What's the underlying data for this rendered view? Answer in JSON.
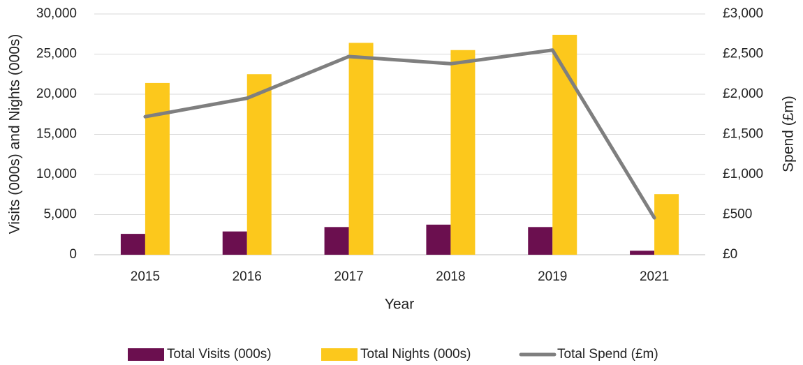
{
  "chart_data": {
    "type": "bar-line",
    "x_label": "Year",
    "y_label": "Visits (000s) and Nights (000s)",
    "y2_label": "Spend (£m)",
    "categories": [
      "2015",
      "2016",
      "2017",
      "2018",
      "2019",
      "2021"
    ],
    "series": [
      {
        "name": "Total Visits (000s)",
        "color": "#6b0f4f",
        "type": "bar",
        "values": [
          2600,
          2900,
          3450,
          3750,
          3450,
          500
        ]
      },
      {
        "name": "Total Nights (000s)",
        "color": "#fcc81c",
        "type": "bar",
        "values": [
          21400,
          22500,
          26400,
          25500,
          27400,
          7550
        ]
      },
      {
        "name": "Total Spend (£m)",
        "color": "#7f7f7f",
        "type": "line",
        "axis": "y2",
        "values": [
          1720,
          1950,
          2470,
          2380,
          2550,
          460
        ]
      }
    ],
    "ylim": [
      0,
      30000
    ],
    "yticks": [
      0,
      {
        "value": 5000,
        "label": "5,000"
      },
      {
        "value": 10000,
        "label": "10,000"
      },
      {
        "value": 15000,
        "label": "15,000"
      },
      {
        "value": 20000,
        "label": "20,000"
      },
      {
        "value": 25000,
        "label": "25,000"
      },
      {
        "value": 30000,
        "label": "30,000"
      }
    ],
    "y2lim": [
      0,
      3000
    ],
    "y2ticks": [
      {
        "value": 0,
        "label": "£0"
      },
      {
        "value": 500,
        "label": "£500"
      },
      {
        "value": 1000,
        "label": "£1,000"
      },
      {
        "value": 1500,
        "label": "£1,500"
      },
      {
        "value": 2000,
        "label": "£2,000"
      },
      {
        "value": 2500,
        "label": "£2,500"
      },
      {
        "value": 3000,
        "label": "£3,000"
      }
    ],
    "grid": true,
    "legend": "bottom"
  }
}
